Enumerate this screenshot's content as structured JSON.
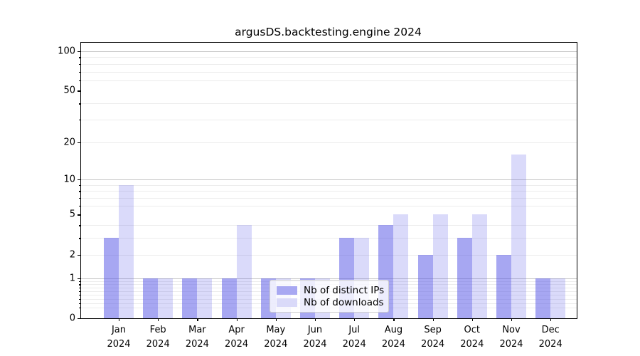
{
  "title": "argusDS.backtesting.engine 2024",
  "legend": {
    "items": [
      {
        "label": "Nb of distinct IPs",
        "color": "#a8a8f2"
      },
      {
        "label": "Nb of downloads",
        "color": "#dadaf9"
      }
    ]
  },
  "chart_data": {
    "type": "bar",
    "title": "argusDS.backtesting.engine 2024",
    "categories": [
      "Jan 2024",
      "Feb 2024",
      "Mar 2024",
      "Apr 2024",
      "May 2024",
      "Jun 2024",
      "Jul 2024",
      "Aug 2024",
      "Sep 2024",
      "Oct 2024",
      "Nov 2024",
      "Dec 2024"
    ],
    "series": [
      {
        "name": "Nb of distinct IPs",
        "color": "rgba(80,80,230,0.5)",
        "values": [
          3,
          1,
          1,
          1,
          1,
          1,
          3,
          4,
          2,
          3,
          2,
          1
        ]
      },
      {
        "name": "Nb of downloads",
        "color": "rgba(80,80,230,0.21)",
        "values": [
          9,
          1,
          1,
          4,
          1,
          1,
          3,
          5,
          5,
          5,
          16,
          1
        ]
      }
    ],
    "yscale": "log1p",
    "ylim": [
      0,
      116
    ],
    "yticks_labeled": [
      0,
      1,
      2,
      5,
      10,
      20,
      50,
      100
    ],
    "yticks_major_grid": [
      1,
      10,
      100
    ],
    "yticks_minor": [
      0.2,
      0.3,
      0.4,
      0.5,
      0.6,
      0.7,
      0.8,
      0.9,
      2,
      3,
      4,
      6,
      7,
      8,
      9,
      20,
      30,
      40,
      60,
      70,
      80,
      90
    ],
    "grid": true,
    "legend_position": "lower center inside"
  }
}
